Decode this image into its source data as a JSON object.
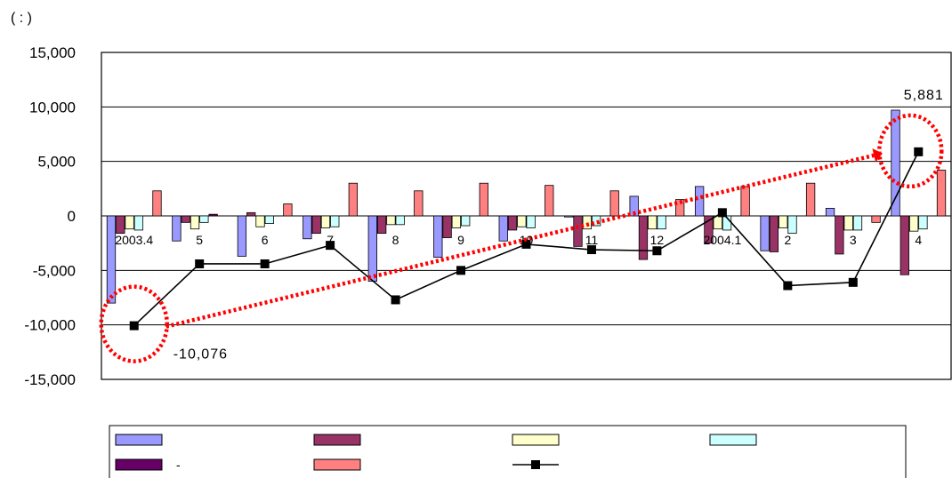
{
  "unit_note": "(      :          )",
  "chart_data": {
    "type": "bar",
    "categories": [
      "2003.4",
      "5",
      "6",
      "7",
      "8",
      "9",
      "10",
      "11",
      "12",
      "2004.1",
      "2",
      "3",
      "4"
    ],
    "ylim": [
      -15000,
      15000
    ],
    "yticks": [
      "15,000",
      "10,000",
      "5,000",
      "0",
      "-5,000",
      "-10,000",
      "-15,000"
    ],
    "ytick_values": [
      15000,
      10000,
      5000,
      0,
      -5000,
      -10000,
      -15000
    ],
    "grid": true,
    "legend_position": "bottom",
    "series": [
      {
        "kind": "bar",
        "color": "#9999ff",
        "values": [
          -8000,
          -2300,
          -3700,
          -2100,
          -6000,
          -3800,
          -2300,
          -100,
          1800,
          2700,
          -3200,
          700,
          9700
        ]
      },
      {
        "kind": "bar",
        "color": "#993366",
        "values": [
          -1600,
          -600,
          300,
          -1600,
          -1600,
          -2000,
          -1300,
          -2800,
          -4000,
          -2500,
          -3300,
          -3500,
          -5400
        ]
      },
      {
        "kind": "bar",
        "color": "#ffffcc",
        "values": [
          -1200,
          -1200,
          -1000,
          -1100,
          -800,
          -1100,
          -1000,
          -1200,
          -1200,
          -1200,
          -1100,
          -1300,
          -1400
        ]
      },
      {
        "kind": "bar",
        "color": "#ccffff",
        "values": [
          -1300,
          -600,
          -700,
          -1000,
          -800,
          -900,
          -1100,
          -900,
          -1200,
          -1300,
          -1600,
          -1300,
          -1200
        ]
      },
      {
        "kind": "bar",
        "color": "#660066",
        "values": [
          0,
          150,
          0,
          0,
          0,
          0,
          0,
          0,
          0,
          0,
          0,
          0,
          0
        ]
      },
      {
        "kind": "bar",
        "color": "#ff8080",
        "values": [
          2300,
          0,
          1100,
          3000,
          2300,
          3000,
          2800,
          2300,
          1500,
          2700,
          3000,
          -600,
          4200
        ]
      },
      {
        "kind": "line",
        "color": "#000000",
        "values": [
          -10076,
          -4400,
          -4400,
          -2700,
          -7700,
          -5000,
          -2600,
          -3100,
          -3200,
          300,
          -6400,
          -6100,
          5881
        ]
      }
    ],
    "annotations": [
      {
        "text": "-10,076",
        "category_index": 0,
        "value": -10076
      },
      {
        "text": "5,881",
        "category_index": 12,
        "value": 5881
      }
    ],
    "trend_arrow": {
      "color": "#ff0000",
      "from_index": 0,
      "from_value": -10076,
      "to_index": 12,
      "to_value": 5881
    }
  },
  "legend": {
    "entries": [
      {
        "label": "",
        "color": "#9999ff",
        "kind": "bar"
      },
      {
        "label": "",
        "color": "#993366",
        "kind": "bar"
      },
      {
        "label": "",
        "color": "#ffffcc",
        "kind": "bar"
      },
      {
        "label": "",
        "color": "#ccffff",
        "kind": "bar"
      },
      {
        "label": "-",
        "color": "#660066",
        "kind": "bar"
      },
      {
        "label": "",
        "color": "#ff8080",
        "kind": "bar"
      },
      {
        "label": "",
        "color": "#000000",
        "kind": "line"
      }
    ]
  }
}
